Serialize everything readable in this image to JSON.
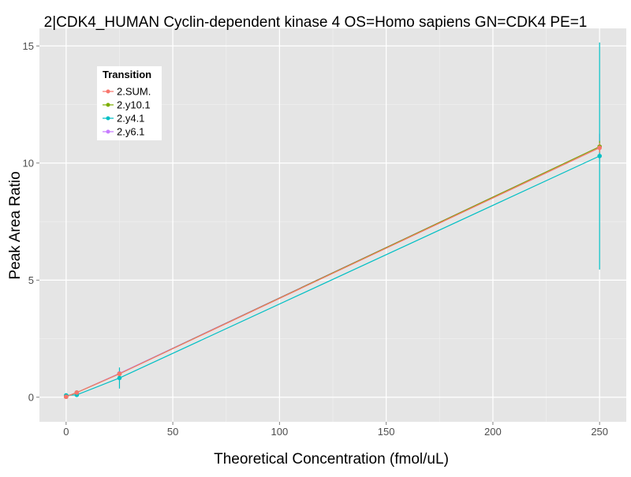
{
  "chart_data": {
    "type": "line",
    "title": "2|CDK4_HUMAN Cyclin-dependent kinase 4 OS=Homo sapiens GN=CDK4 PE=1",
    "xlabel": "Theoretical Concentration (fmol/uL)",
    "ylabel": "Peak Area Ratio",
    "xlim": [
      -12.5,
      262.5
    ],
    "ylim": [
      -1.05,
      15.75
    ],
    "x_ticks": [
      0,
      50,
      100,
      150,
      200,
      250
    ],
    "y_ticks": [
      0,
      5,
      10,
      15
    ],
    "grid": true,
    "legend": {
      "title": "Transition",
      "placement": "top-left-inside"
    },
    "x": [
      0,
      5,
      25,
      250
    ],
    "series": [
      {
        "name": "2.SUM.",
        "color": "#F8766D",
        "values": [
          0.02,
          0.2,
          1.0,
          10.65
        ],
        "error": [
          0.02,
          0.05,
          0.05,
          0.2
        ]
      },
      {
        "name": "2.y10.1",
        "color": "#7CAE00",
        "values": [
          0.02,
          0.2,
          1.0,
          10.7
        ],
        "error": [
          0.02,
          0.05,
          0.05,
          0.25
        ]
      },
      {
        "name": "2.y4.1",
        "color": "#00BFC4",
        "values": [
          0.08,
          0.1,
          0.82,
          10.3
        ],
        "error": [
          0.05,
          0.05,
          0.45,
          4.85
        ]
      },
      {
        "name": "2.y6.1",
        "color": "#C77CFF",
        "values": [
          0.02,
          0.2,
          1.02,
          10.7
        ],
        "error": [
          0.02,
          0.05,
          0.05,
          0.55
        ]
      }
    ]
  }
}
